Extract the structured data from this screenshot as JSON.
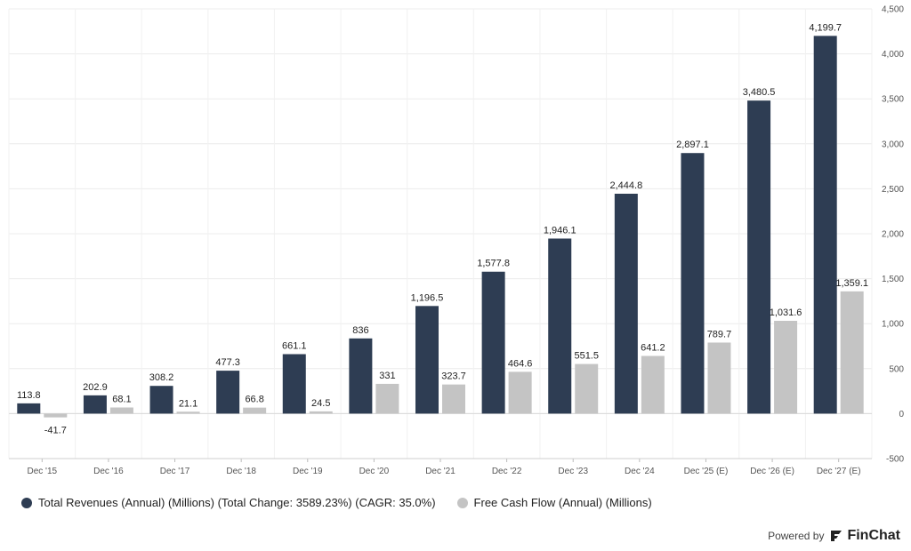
{
  "chart_data": {
    "type": "bar",
    "categories": [
      "Dec '15",
      "Dec '16",
      "Dec '17",
      "Dec '18",
      "Dec '19",
      "Dec '20",
      "Dec '21",
      "Dec '22",
      "Dec '23",
      "Dec '24",
      "Dec '25 (E)",
      "Dec '26 (E)",
      "Dec '27 (E)"
    ],
    "series": [
      {
        "name": "Total Revenues (Annual) (Millions) (Total Change: 3589.23%) (CAGR: 35.0%)",
        "color": "#2e3d53",
        "values": [
          113.8,
          202.9,
          308.2,
          477.3,
          661.1,
          836,
          1196.5,
          1577.8,
          1946.1,
          2444.8,
          2897.1,
          3480.5,
          4199.7
        ],
        "labels": [
          "113.8",
          "202.9",
          "308.2",
          "477.3",
          "661.1",
          "836",
          "1,196.5",
          "1,577.8",
          "1,946.1",
          "2,444.8",
          "2,897.1",
          "3,480.5",
          "4,199.7"
        ]
      },
      {
        "name": "Free Cash Flow (Annual) (Millions)",
        "color": "#c4c4c4",
        "values": [
          -41.7,
          68.1,
          21.1,
          66.8,
          24.5,
          331,
          323.7,
          464.6,
          551.5,
          641.2,
          789.7,
          1031.6,
          1359.1
        ],
        "labels": [
          "-41.7",
          "68.1",
          "21.1",
          "66.8",
          "24.5",
          "331",
          "323.7",
          "464.6",
          "551.5",
          "641.2",
          "789.7",
          "1,031.6",
          "1,359.1"
        ]
      }
    ],
    "ylim": [
      -500,
      4500
    ],
    "yticks": [
      -500,
      0,
      500,
      1000,
      1500,
      2000,
      2500,
      3000,
      3500,
      4000,
      4500
    ],
    "ytick_labels": [
      "-500",
      "0",
      "500",
      "1,000",
      "1,500",
      "2,000",
      "2,500",
      "3,000",
      "3,500",
      "4,000",
      "4,500"
    ],
    "y_axis_side": "right",
    "grid": true,
    "legend_position": "bottom-left"
  },
  "credit": {
    "text": "Powered by",
    "brand": "FinChat"
  }
}
